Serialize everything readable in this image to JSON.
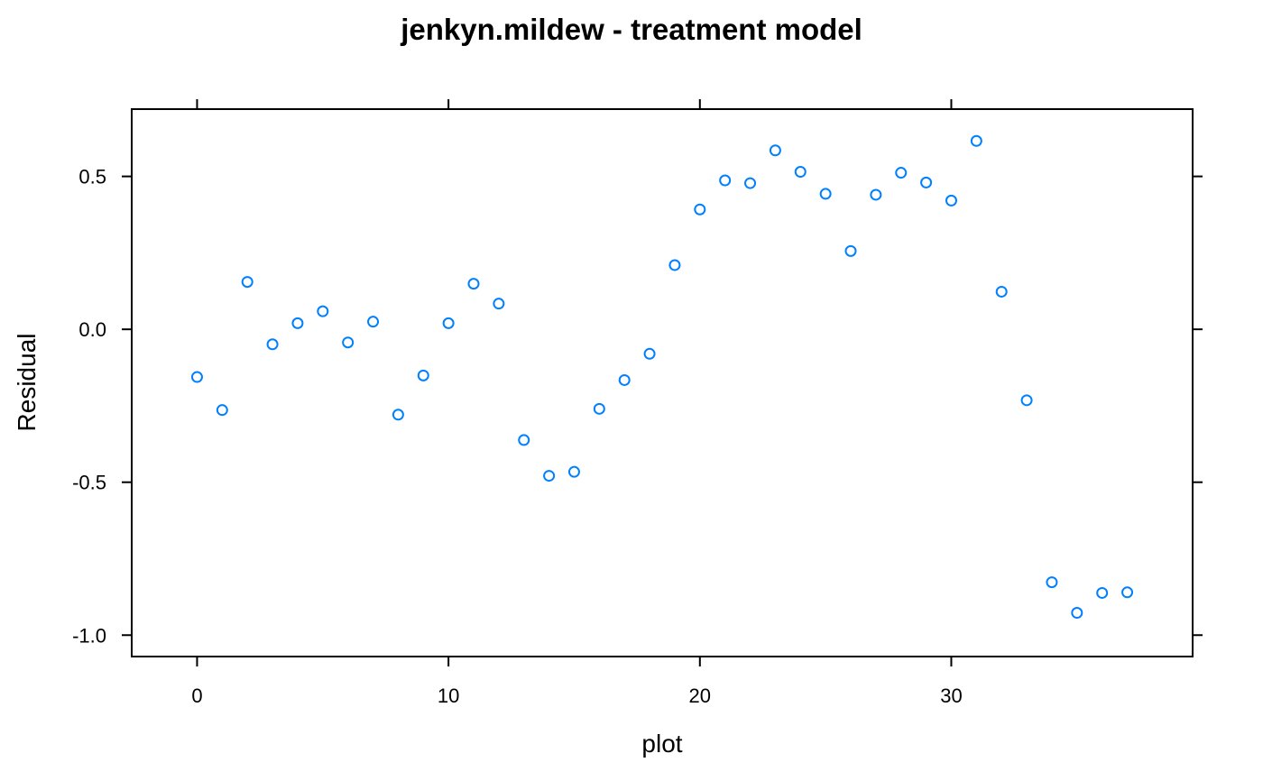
{
  "chart_data": {
    "type": "scatter",
    "title": "jenkyn.mildew - treatment model",
    "xlabel": "plot",
    "ylabel": "Residual",
    "xlim": [
      -2.6,
      39.6
    ],
    "ylim": [
      -1.07,
      0.72
    ],
    "xticks": [
      0,
      10,
      20,
      30
    ],
    "xtick_labels": [
      "0",
      "10",
      "20",
      "30"
    ],
    "yticks": [
      -1.0,
      -0.5,
      0.0,
      0.5
    ],
    "ytick_labels": [
      "-1.0",
      "-0.5",
      "0.0",
      "0.5"
    ],
    "grid": false,
    "point_color": "#0080ff",
    "x": [
      0,
      1,
      2,
      3,
      4,
      5,
      6,
      7,
      8,
      9,
      10,
      11,
      12,
      13,
      14,
      15,
      16,
      17,
      18,
      19,
      20,
      21,
      22,
      23,
      24,
      25,
      26,
      27,
      28,
      29,
      30,
      31,
      32,
      33,
      34,
      35,
      36,
      37
    ],
    "y": [
      -0.156,
      -0.264,
      0.155,
      -0.049,
      0.02,
      0.059,
      -0.043,
      0.025,
      -0.279,
      -0.151,
      0.02,
      0.149,
      0.084,
      -0.362,
      -0.479,
      -0.466,
      -0.26,
      -0.166,
      -0.08,
      0.21,
      0.392,
      0.487,
      0.478,
      0.585,
      0.515,
      0.443,
      0.256,
      0.44,
      0.512,
      0.48,
      0.421,
      0.616,
      0.123,
      -0.232,
      -0.827,
      -0.927,
      -0.862,
      -0.86
    ]
  }
}
